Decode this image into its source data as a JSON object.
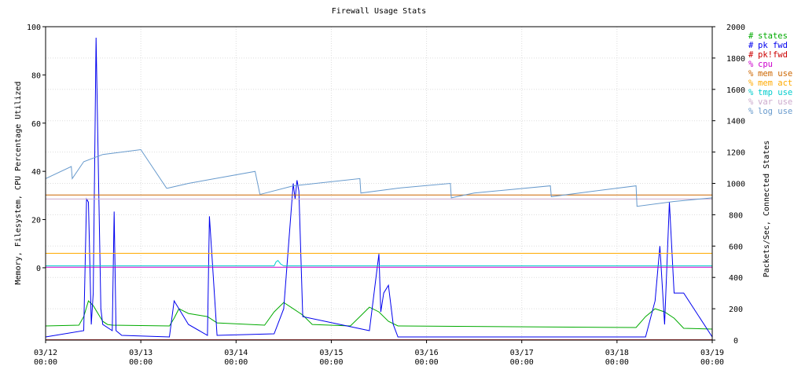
{
  "chart_data": {
    "type": "line",
    "title": "Firewall Usage Stats",
    "ylabel_left": "Memory, Filesystem, CPU Percentage Utilized",
    "ylabel_right": "Packets/Sec, Connected States",
    "ylim_left": [
      -30,
      100
    ],
    "ylim_right": [
      0,
      2000
    ],
    "yticks_left": [
      "100",
      "80",
      "60",
      "40",
      "20",
      "0"
    ],
    "yticks_right": [
      "2000",
      "1800",
      "1600",
      "1400",
      "1200",
      "1000",
      "800",
      "600",
      "400",
      "200",
      "0"
    ],
    "xticks": [
      {
        "date": "03/12",
        "time": "00:00"
      },
      {
        "date": "03/13",
        "time": "00:00"
      },
      {
        "date": "03/14",
        "time": "00:00"
      },
      {
        "date": "03/15",
        "time": "00:00"
      },
      {
        "date": "03/16",
        "time": "00:00"
      },
      {
        "date": "03/17",
        "time": "00:00"
      },
      {
        "date": "03/18",
        "time": "00:00"
      },
      {
        "date": "03/19",
        "time": "00:00"
      }
    ],
    "x_range_days": [
      0,
      7
    ],
    "grid": true,
    "legend_position": "right",
    "series": [
      {
        "name": "states",
        "symbol": "#",
        "color": "#00aa00",
        "axis": "right",
        "x": [
          0,
          0.35,
          0.4,
          0.45,
          0.5,
          0.55,
          0.6,
          0.65,
          0.7,
          1.3,
          1.35,
          1.4,
          1.5,
          1.6,
          1.7,
          1.8,
          2.3,
          2.4,
          2.5,
          2.6,
          2.7,
          2.8,
          3.2,
          3.3,
          3.4,
          3.5,
          3.6,
          3.7,
          6.2,
          6.3,
          6.4,
          6.5,
          6.6,
          6.7,
          7.0
        ],
        "y": [
          90,
          95,
          150,
          250,
          220,
          170,
          120,
          100,
          95,
          90,
          140,
          200,
          170,
          160,
          150,
          110,
          95,
          180,
          240,
          200,
          160,
          100,
          90,
          150,
          210,
          180,
          120,
          90,
          80,
          150,
          200,
          180,
          140,
          75,
          70
        ]
      },
      {
        "name": "pk fwd",
        "symbol": "#",
        "color": "#0000ee",
        "axis": "right",
        "x": [
          0,
          0.4,
          0.43,
          0.45,
          0.48,
          0.5,
          0.53,
          0.56,
          0.58,
          0.6,
          0.7,
          0.72,
          0.74,
          0.8,
          1.3,
          1.35,
          1.4,
          1.5,
          1.7,
          1.72,
          1.8,
          2.4,
          2.5,
          2.6,
          2.62,
          2.64,
          2.66,
          2.7,
          3.4,
          3.5,
          3.52,
          3.55,
          3.6,
          3.65,
          3.7,
          6.3,
          6.4,
          6.45,
          6.5,
          6.55,
          6.6,
          6.7,
          7.0
        ],
        "y": [
          20,
          60,
          900,
          880,
          100,
          300,
          1930,
          900,
          200,
          100,
          60,
          820,
          60,
          30,
          20,
          250,
          200,
          100,
          30,
          790,
          30,
          40,
          200,
          1000,
          900,
          1020,
          950,
          150,
          60,
          550,
          180,
          300,
          350,
          100,
          20,
          20,
          250,
          600,
          100,
          880,
          300,
          300,
          20
        ]
      },
      {
        "name": "pk!fwd",
        "symbol": "#",
        "color": "#cc0000",
        "axis": "right",
        "x": [
          0,
          7.0
        ],
        "y": [
          2,
          2
        ]
      },
      {
        "name": "cpu",
        "symbol": "%",
        "color": "#cc00cc",
        "axis": "left",
        "x": [
          0,
          7.0
        ],
        "y": [
          0.2,
          0.2
        ]
      },
      {
        "name": "mem use",
        "symbol": "%",
        "color": "#cc6600",
        "axis": "left",
        "x": [
          0,
          7.0
        ],
        "y": [
          30.2,
          30.2
        ]
      },
      {
        "name": "mem act",
        "symbol": "%",
        "color": "#ffaa00",
        "axis": "left",
        "x": [
          0,
          7.0
        ],
        "y": [
          6,
          6
        ]
      },
      {
        "name": "tmp use",
        "symbol": "%",
        "color": "#00cccc",
        "axis": "left",
        "x": [
          0,
          2.4,
          2.42,
          2.44,
          2.47,
          2.5,
          7.0
        ],
        "y": [
          0.8,
          0.8,
          2.5,
          3,
          1.5,
          0.8,
          0.8
        ]
      },
      {
        "name": "var use",
        "symbol": "%",
        "color": "#ccaacc",
        "axis": "left",
        "x": [
          0,
          7.0
        ],
        "y": [
          28.5,
          28.5
        ]
      },
      {
        "name": "log use",
        "symbol": "%",
        "color": "#6699cc",
        "axis": "left",
        "x": [
          0,
          0.27,
          0.28,
          0.4,
          0.6,
          1.0,
          1.27,
          1.28,
          1.5,
          2.2,
          2.25,
          2.26,
          2.6,
          3.3,
          3.31,
          3.7,
          4.25,
          4.26,
          4.5,
          5.3,
          5.31,
          5.7,
          6.2,
          6.21,
          6.6,
          7.0
        ],
        "y": [
          37,
          42,
          37,
          44,
          47,
          49,
          33,
          33,
          35,
          40,
          30.5,
          30.5,
          34,
          37,
          31,
          33,
          35,
          29,
          31,
          34,
          29.5,
          31.5,
          34,
          25.5,
          27.5,
          29
        ]
      }
    ]
  }
}
